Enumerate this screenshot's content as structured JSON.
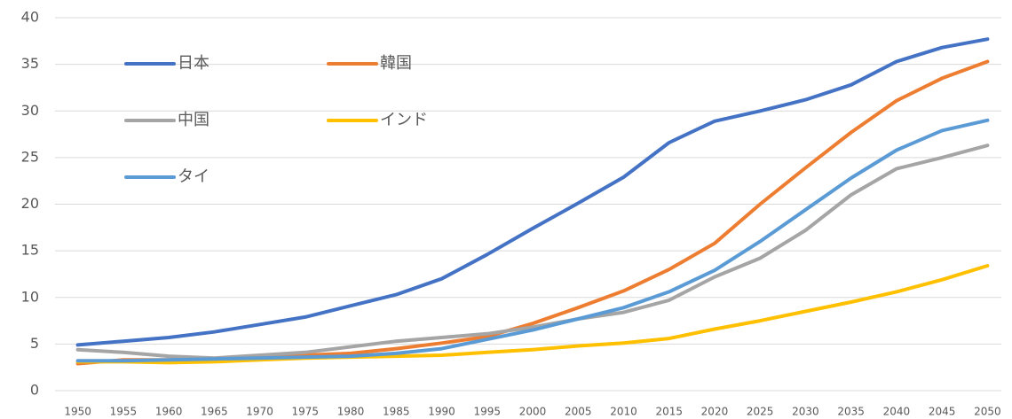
{
  "chart_data": {
    "type": "line",
    "categories": [
      "1950",
      "1955",
      "1960",
      "1965",
      "1970",
      "1975",
      "1980",
      "1985",
      "1990",
      "1995",
      "2000",
      "2005",
      "2010",
      "2015",
      "2020",
      "2025",
      "2030",
      "2035",
      "2040",
      "2045",
      "2050"
    ],
    "series": [
      {
        "name": "日本",
        "color": "#4472c4",
        "values": [
          4.9,
          5.3,
          5.7,
          6.3,
          7.1,
          7.9,
          9.1,
          10.3,
          12.0,
          14.6,
          17.4,
          20.1,
          22.9,
          26.6,
          28.9,
          30.0,
          31.2,
          32.8,
          35.3,
          36.8,
          37.7
        ]
      },
      {
        "name": "韓国",
        "color": "#ed7d31",
        "values": [
          2.9,
          3.3,
          3.3,
          3.4,
          3.5,
          3.8,
          4.0,
          4.5,
          5.1,
          5.8,
          7.2,
          8.9,
          10.7,
          13.0,
          15.8,
          20.0,
          23.9,
          27.7,
          31.1,
          33.5,
          35.3
        ]
      },
      {
        "name": "中国",
        "color": "#a5a5a5",
        "values": [
          4.4,
          4.1,
          3.7,
          3.5,
          3.8,
          4.1,
          4.7,
          5.3,
          5.7,
          6.1,
          6.8,
          7.7,
          8.4,
          9.7,
          12.2,
          14.2,
          17.2,
          21.0,
          23.8,
          25.0,
          26.3
        ]
      },
      {
        "name": "インド",
        "color": "#ffc000",
        "values": [
          3.1,
          3.1,
          3.0,
          3.1,
          3.3,
          3.5,
          3.6,
          3.7,
          3.8,
          4.1,
          4.4,
          4.8,
          5.1,
          5.6,
          6.6,
          7.5,
          8.5,
          9.5,
          10.6,
          11.9,
          13.4
        ]
      },
      {
        "name": "タイ",
        "color": "#5b9bd5",
        "values": [
          3.2,
          3.2,
          3.3,
          3.4,
          3.5,
          3.6,
          3.7,
          4.0,
          4.5,
          5.5,
          6.5,
          7.7,
          8.9,
          10.6,
          12.9,
          16.0,
          19.4,
          22.8,
          25.8,
          27.9,
          29.0
        ]
      }
    ],
    "ylim": [
      0,
      40
    ],
    "yticks": [
      0,
      5,
      10,
      15,
      20,
      25,
      30,
      35,
      40
    ],
    "grid": true,
    "legend": "upper left"
  }
}
